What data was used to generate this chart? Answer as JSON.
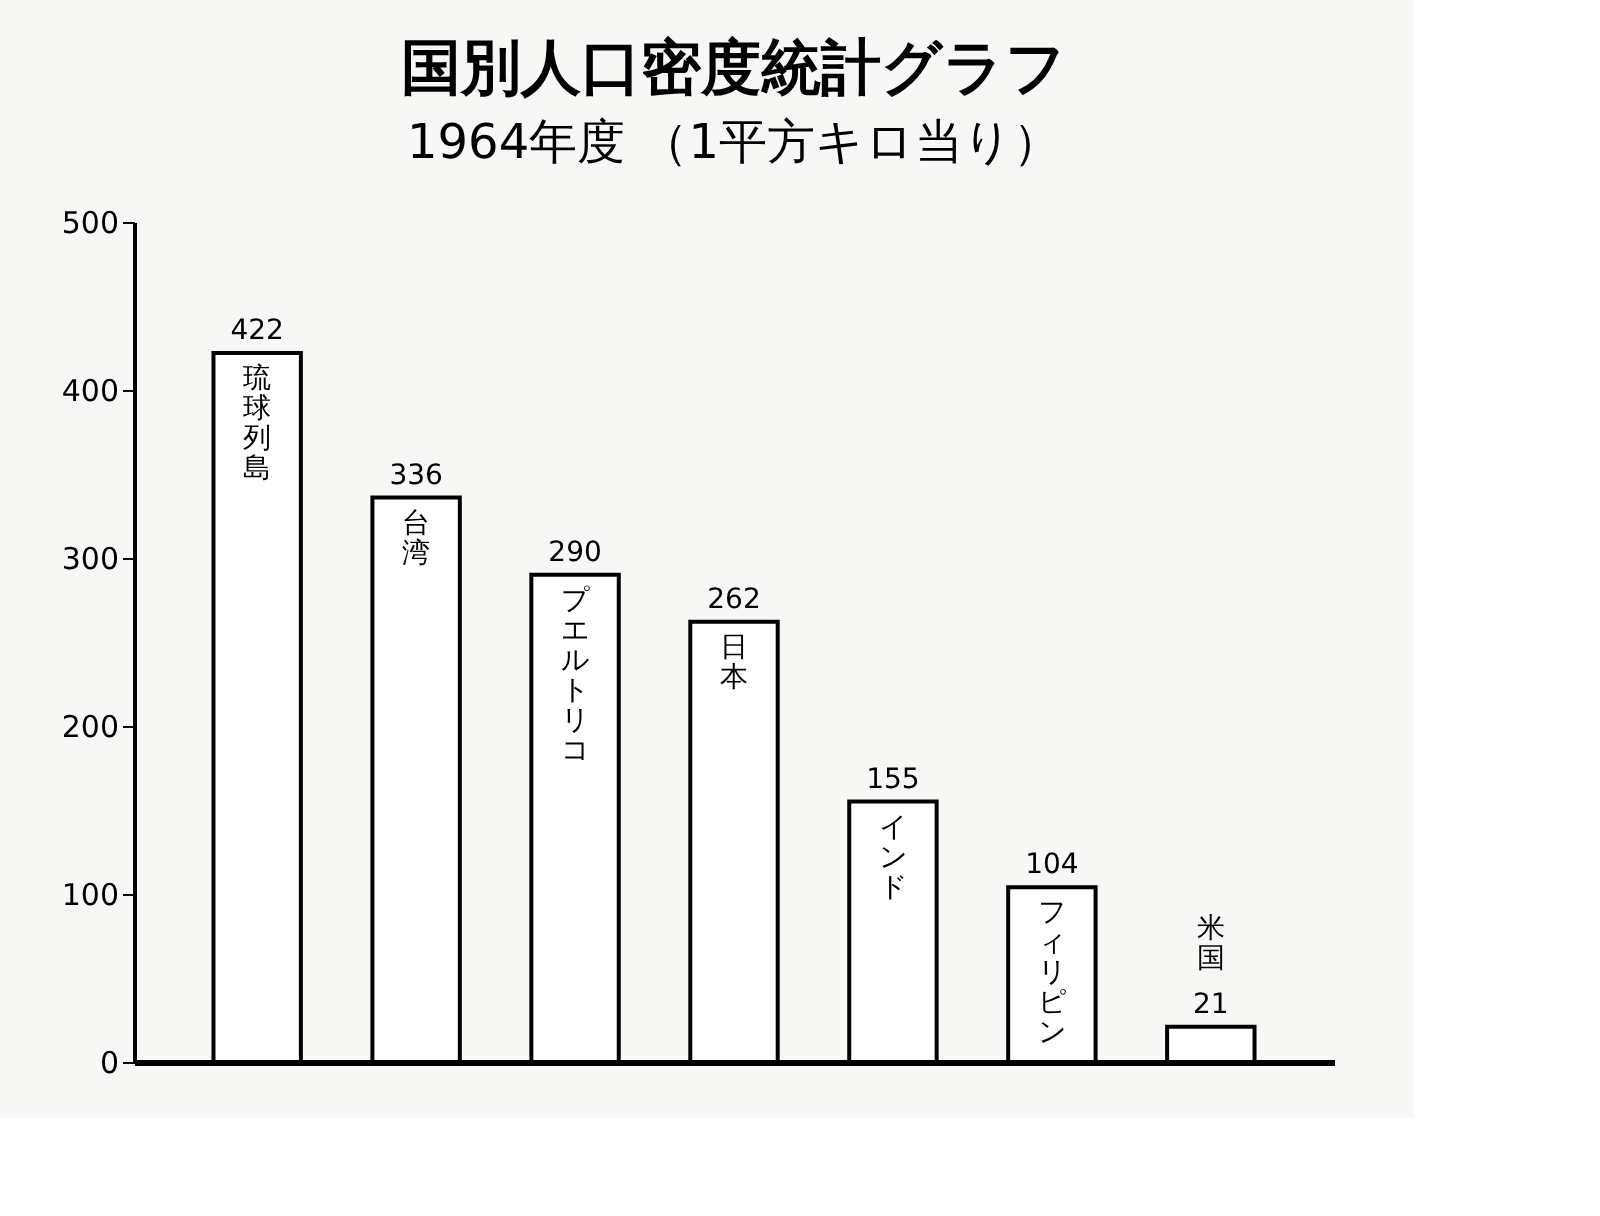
{
  "chart_data": {
    "type": "bar",
    "title": "国別人口密度統計グラフ",
    "subtitle": "1964年度 （1平方キロ当り）",
    "categories": [
      "琉球列島",
      "台湾",
      "プエルトリコ",
      "日本",
      "インド",
      "フィリピン",
      "米国"
    ],
    "values": [
      422,
      336,
      290,
      262,
      155,
      104,
      21
    ],
    "color": "#ffffff",
    "ylim": [
      0,
      500
    ],
    "yticks": [
      0,
      100,
      200,
      300,
      400,
      500
    ],
    "grid": false,
    "data_labels": true
  }
}
